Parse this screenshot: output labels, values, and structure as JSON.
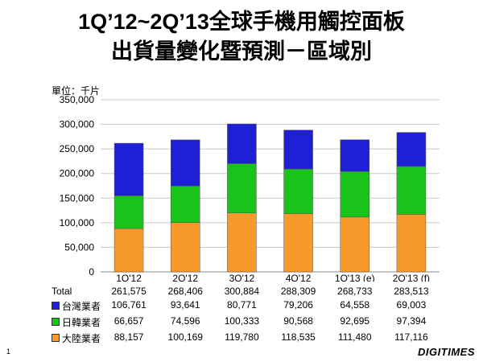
{
  "title_line1": "1Q’12~2Q’13全球手機用觸控面板",
  "title_line2": "出貨量變化暨預測－區域別",
  "unit_label": "單位：千片",
  "page_number": "1",
  "brand": "DIGITIMES",
  "chart_data": {
    "type": "bar",
    "stacked": true,
    "title": "1Q’12~2Q’13全球手機用觸控面板出貨量變化暨預測－區域別",
    "ylabel": "單位：千片",
    "ylim": [
      0,
      350000
    ],
    "yticks": [
      0,
      50000,
      100000,
      150000,
      200000,
      250000,
      300000,
      350000
    ],
    "ytick_labels": [
      "0",
      "50,000",
      "100,000",
      "150,000",
      "200,000",
      "250,000",
      "300,000",
      "350,000"
    ],
    "grid": true,
    "categories": [
      "1Q'12",
      "2Q'12",
      "3Q'12",
      "4Q'12",
      "1Q'13 (e)",
      "2Q'13 (f)"
    ],
    "totals_label": "Total",
    "totals": [
      "261,575",
      "268,406",
      "300,884",
      "288,309",
      "268,733",
      "283,513"
    ],
    "series": [
      {
        "name": "大陸業者",
        "color": "#f79a2a",
        "values": [
          88157,
          100169,
          119780,
          118535,
          111480,
          117116
        ],
        "labels": [
          "88,157",
          "100,169",
          "119,780",
          "118,535",
          "111,480",
          "117,116"
        ]
      },
      {
        "name": "日韓業者",
        "color": "#19c319",
        "values": [
          66657,
          74596,
          100333,
          90568,
          92695,
          97394
        ],
        "labels": [
          "66,657",
          "74,596",
          "100,333",
          "90,568",
          "92,695",
          "97,394"
        ]
      },
      {
        "name": "台灣業者",
        "color": "#1f1fd6",
        "values": [
          106761,
          93641,
          80771,
          79206,
          64558,
          69003
        ],
        "labels": [
          "106,761",
          "93,641",
          "80,771",
          "79,206",
          "64,558",
          "69,003"
        ]
      }
    ]
  }
}
